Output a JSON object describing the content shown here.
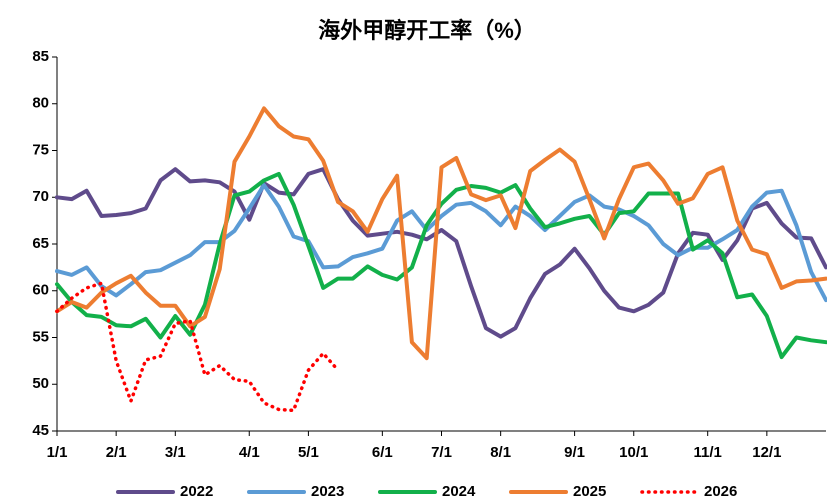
{
  "chart_data": {
    "type": "line",
    "title": "海外甲醇开工率（%）",
    "categories": [
      "1/1",
      null,
      null,
      null,
      "2/1",
      null,
      null,
      null,
      "3/1",
      null,
      null,
      null,
      null,
      "4/1",
      null,
      null,
      null,
      "5/1",
      null,
      null,
      null,
      null,
      "6/1",
      null,
      null,
      null,
      "7/1",
      null,
      null,
      null,
      "8/1",
      null,
      null,
      null,
      null,
      "9/1",
      null,
      null,
      null,
      "10/1",
      null,
      null,
      null,
      null,
      "11/1",
      null,
      null,
      null,
      "12/1",
      null,
      null,
      null,
      null
    ],
    "series": [
      {
        "name": "2022",
        "color": "#5f4b8b",
        "dash": false,
        "values": [
          70.0,
          69.8,
          70.7,
          68.0,
          68.1,
          68.3,
          68.8,
          71.8,
          73.0,
          71.7,
          71.8,
          71.6,
          70.6,
          67.6,
          71.5,
          70.5,
          70.3,
          72.5,
          73.0,
          69.8,
          67.5,
          65.9,
          66.1,
          66.3,
          66.0,
          65.5,
          66.5,
          65.3,
          60.5,
          56.0,
          55.1,
          56.0,
          59.2,
          61.8,
          62.8,
          64.5,
          62.4,
          60.0,
          58.2,
          57.8,
          58.5,
          59.8,
          64.0,
          66.2,
          66.0,
          63.3,
          65.4,
          68.8,
          69.4,
          67.2,
          65.7,
          65.6,
          62.5
        ]
      },
      {
        "name": "2023",
        "color": "#5b9bd5",
        "dash": false,
        "values": [
          62.1,
          61.7,
          62.5,
          60.5,
          59.5,
          60.7,
          62.0,
          62.2,
          63.0,
          63.8,
          65.2,
          65.2,
          66.4,
          68.8,
          71.3,
          69.0,
          65.8,
          65.3,
          62.5,
          62.6,
          63.6,
          64.0,
          64.5,
          67.5,
          68.5,
          66.5,
          68.0,
          69.2,
          69.4,
          68.5,
          67.0,
          69.0,
          68.0,
          66.5,
          68.0,
          69.5,
          70.2,
          69.0,
          68.7,
          68.0,
          67.0,
          65.0,
          63.8,
          64.6,
          64.6,
          65.5,
          66.5,
          69.0,
          70.5,
          70.7,
          67.0,
          62.0,
          59.0
        ]
      },
      {
        "name": "2024",
        "color": "#12b04a",
        "dash": false,
        "values": [
          60.7,
          58.8,
          57.4,
          57.2,
          56.3,
          56.2,
          57.0,
          55.0,
          57.3,
          55.3,
          58.5,
          65.0,
          70.2,
          70.6,
          71.8,
          72.5,
          69.2,
          64.8,
          60.3,
          61.3,
          61.3,
          62.6,
          61.7,
          61.2,
          62.5,
          67.0,
          69.3,
          70.8,
          71.2,
          71.0,
          70.5,
          71.3,
          68.8,
          66.8,
          67.2,
          67.7,
          68.0,
          66.0,
          68.3,
          68.5,
          70.4,
          70.4,
          70.4,
          64.4,
          65.4,
          64.0,
          59.3,
          59.6,
          57.3,
          52.9,
          55.0,
          54.7,
          54.5
        ]
      },
      {
        "name": "2025",
        "color": "#ed7d31",
        "dash": false,
        "values": [
          57.8,
          58.8,
          58.2,
          59.8,
          60.8,
          61.6,
          59.8,
          58.4,
          58.4,
          56.2,
          57.2,
          62.3,
          73.8,
          76.5,
          79.5,
          77.6,
          76.5,
          76.2,
          73.9,
          69.5,
          68.5,
          66.3,
          69.8,
          72.3,
          54.5,
          52.8,
          73.2,
          74.2,
          70.3,
          69.7,
          70.2,
          66.7,
          72.8,
          74.0,
          75.1,
          73.8,
          69.8,
          65.6,
          69.8,
          73.2,
          73.6,
          71.8,
          69.3,
          69.9,
          72.5,
          73.2,
          67.5,
          64.4,
          63.9,
          60.3,
          61.0,
          61.1,
          61.3
        ]
      },
      {
        "name": "2026",
        "color": "#ff0000",
        "dash": true,
        "values": [
          57.8,
          59.2,
          60.3,
          60.8,
          52.5,
          48.2,
          52.6,
          53.0,
          56.5,
          56.8,
          51.0,
          52.0,
          50.5,
          50.3,
          48.0,
          47.3,
          47.2,
          51.5,
          53.3,
          51.5,
          null,
          null,
          null,
          null,
          null,
          null,
          null,
          null,
          null,
          null,
          null,
          null,
          null,
          null,
          null,
          null,
          null,
          null,
          null,
          null,
          null,
          null,
          null,
          null,
          null,
          null,
          null,
          null,
          null,
          null,
          null,
          null,
          null
        ]
      }
    ],
    "ylim": [
      45,
      85
    ],
    "yticks": [
      45,
      50,
      55,
      60,
      65,
      70,
      75,
      80,
      85
    ],
    "grid": false,
    "legend": "bottom"
  }
}
